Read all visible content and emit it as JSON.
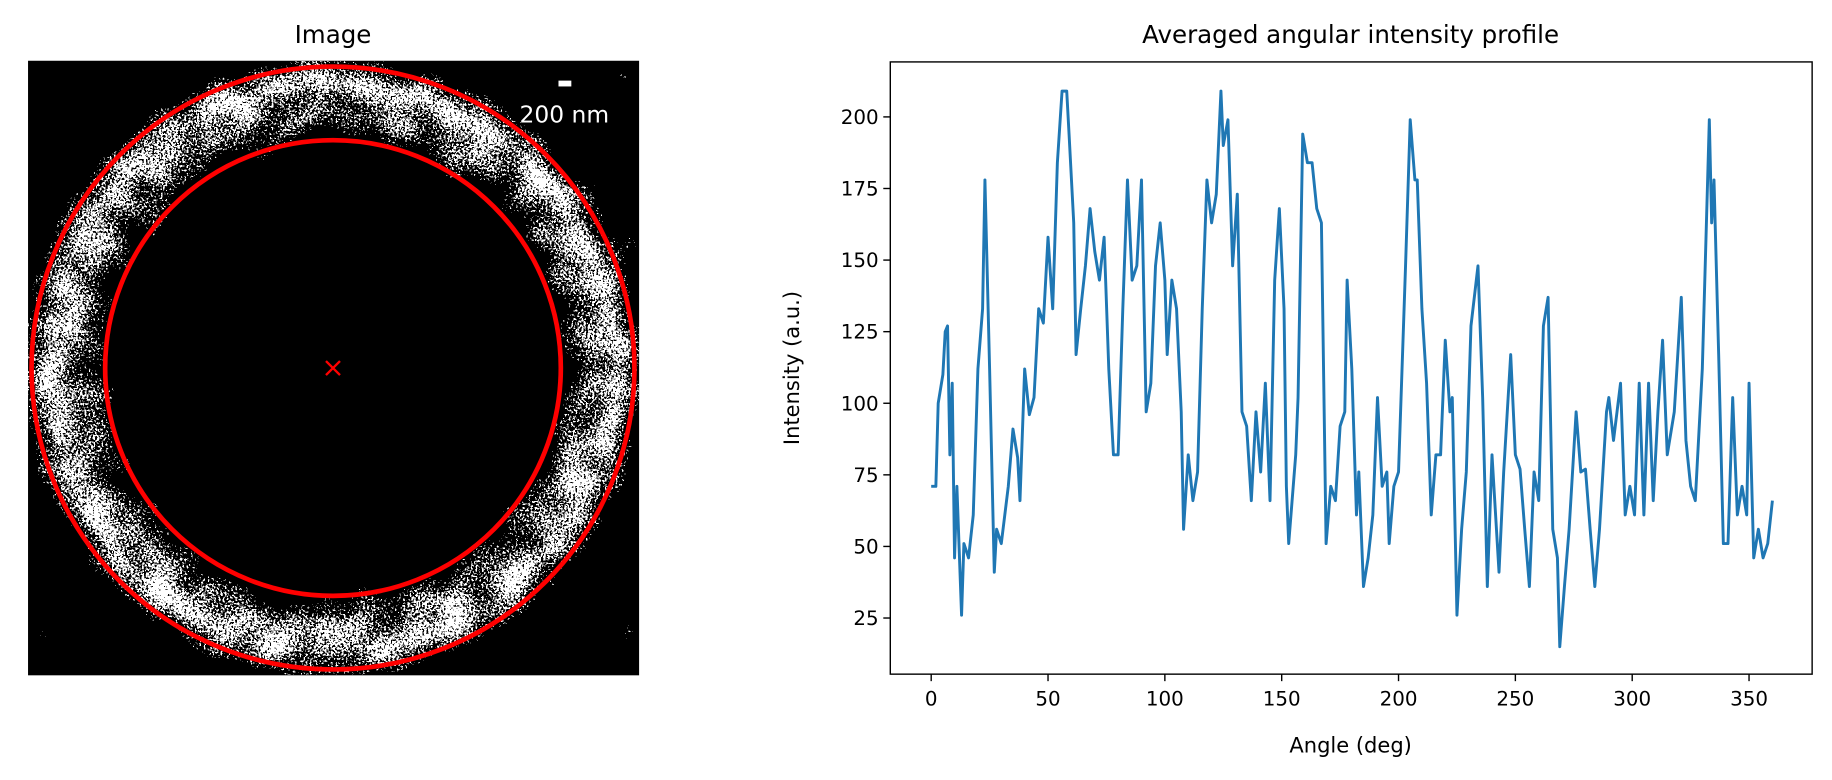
{
  "chart_data": [
    {
      "type": "image",
      "title": "Image",
      "scale_bar_label": "200 nm"
    },
    {
      "type": "line",
      "title": "Averaged angular intensity profile",
      "x_label": "Angle (deg)",
      "y_label": "Intensity (a.u.)",
      "color": "#1f77b4",
      "x": [
        0,
        2,
        3,
        5,
        6,
        7,
        8,
        9,
        10,
        11,
        13,
        14,
        16,
        18,
        20,
        22,
        23,
        25,
        27,
        28,
        30,
        33,
        35,
        37,
        38,
        40,
        42,
        44,
        46,
        48,
        50,
        52,
        54,
        56,
        58,
        59,
        61,
        62,
        64,
        66,
        68,
        70,
        72,
        74,
        76,
        78,
        80,
        82,
        84,
        86,
        88,
        90,
        92,
        94,
        96,
        98,
        100,
        101,
        103,
        105,
        107,
        108,
        110,
        112,
        114,
        116,
        118,
        120,
        122,
        124,
        125,
        127,
        129,
        131,
        133,
        135,
        137,
        139,
        141,
        143,
        145,
        147,
        149,
        151,
        152,
        153,
        156,
        157,
        159,
        161,
        163,
        165,
        167,
        169,
        171,
        173,
        175,
        177,
        178,
        180,
        182,
        183,
        185,
        187,
        189,
        191,
        193,
        195,
        196,
        198,
        200,
        203,
        205,
        207,
        208,
        210,
        212,
        214,
        216,
        218,
        220,
        222,
        223,
        225,
        227,
        229,
        231,
        234,
        236,
        238,
        240,
        243,
        245,
        248,
        250,
        252,
        254,
        256,
        258,
        260,
        262,
        264,
        266,
        268,
        269,
        271,
        273,
        276,
        278,
        280,
        282,
        284,
        286,
        289,
        290,
        292,
        295,
        297,
        299,
        301,
        303,
        305,
        307,
        309,
        311,
        313,
        315,
        318,
        321,
        323,
        325,
        327,
        330,
        333,
        334,
        335,
        337,
        339,
        341,
        343,
        345,
        347,
        349,
        350,
        352,
        354,
        356,
        358,
        360
      ],
      "values": [
        71,
        71,
        100,
        110,
        125,
        127,
        82,
        107,
        46,
        71,
        26,
        51,
        46,
        61,
        112,
        133,
        178,
        112,
        41,
        56,
        51,
        71,
        91,
        81,
        66,
        112,
        96,
        102,
        133,
        128,
        158,
        133,
        184,
        209,
        209,
        194,
        163,
        117,
        133,
        148,
        168,
        153,
        143,
        158,
        112,
        82,
        82,
        133,
        178,
        143,
        148,
        178,
        97,
        107,
        148,
        163,
        143,
        117,
        143,
        133,
        97,
        56,
        82,
        66,
        76,
        133,
        178,
        163,
        173,
        209,
        190,
        199,
        148,
        173,
        97,
        92,
        66,
        97,
        76,
        107,
        66,
        143,
        168,
        133,
        71,
        51,
        82,
        102,
        194,
        184,
        184,
        168,
        163,
        51,
        71,
        66,
        92,
        97,
        143,
        112,
        61,
        76,
        36,
        46,
        61,
        102,
        71,
        76,
        51,
        71,
        76,
        148,
        199,
        178,
        178,
        133,
        107,
        61,
        82,
        82,
        122,
        97,
        102,
        26,
        56,
        76,
        127,
        148,
        102,
        36,
        82,
        41,
        76,
        117,
        82,
        77,
        56,
        36,
        76,
        66,
        127,
        137,
        56,
        46,
        15,
        36,
        56,
        97,
        76,
        77,
        56,
        36,
        56,
        97,
        102,
        87,
        107,
        61,
        71,
        61,
        107,
        61,
        107,
        66,
        97,
        122,
        82,
        97,
        137,
        87,
        71,
        66,
        112,
        199,
        163,
        178,
        117,
        51,
        51,
        102,
        61,
        71,
        61,
        107,
        46,
        56,
        46,
        51,
        66
      ],
      "xlim": [
        -17.5,
        377
      ],
      "ylim": [
        5.4,
        219.2
      ],
      "xticks": [
        0,
        50,
        100,
        150,
        200,
        250,
        300,
        350
      ],
      "yticks": [
        25,
        50,
        75,
        100,
        125,
        150,
        175,
        200
      ]
    }
  ]
}
